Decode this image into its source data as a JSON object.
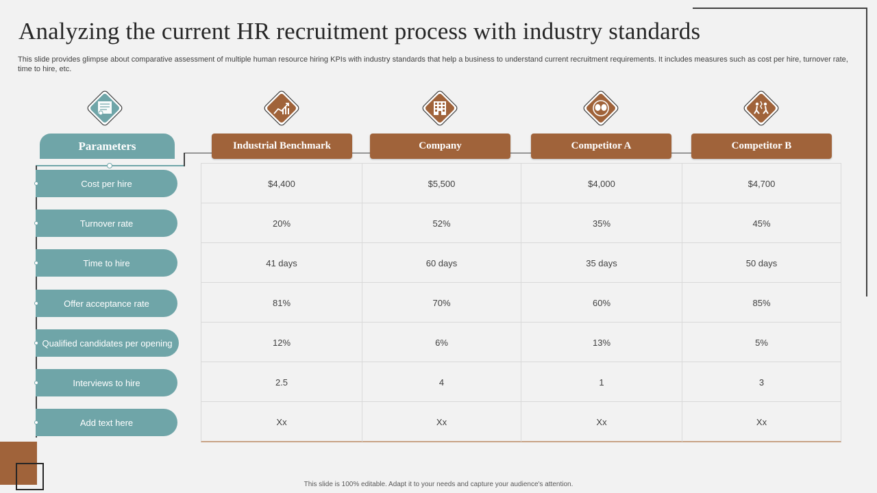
{
  "title": "Analyzing the current HR recruitment process with industry standards",
  "subtitle": "This slide provides glimpse about comparative assessment of multiple human resource hiring KPIs with industry standards that help a business to understand current recruitment requirements. It includes measures such as cost per hire, turnover rate, time to hire, etc.",
  "params_header": "Parameters",
  "columns": [
    {
      "label": "Industrial  Benchmark",
      "icon": "chart-trend-icon"
    },
    {
      "label": "Company",
      "icon": "building-icon"
    },
    {
      "label": "Competitor  A",
      "icon": "boxing-gloves-icon"
    },
    {
      "label": "Competitor  B",
      "icon": "competition-figures-icon"
    }
  ],
  "params_icon": "document-gear-icon",
  "rows": [
    {
      "param": "Cost per hire",
      "values": [
        "$4,400",
        "$5,500",
        "$4,000",
        "$4,700"
      ]
    },
    {
      "param": "Turnover  rate",
      "values": [
        "20%",
        "52%",
        "35%",
        "45%"
      ]
    },
    {
      "param": "Time to hire",
      "values": [
        "41 days",
        "60 days",
        "35 days",
        "50 days"
      ]
    },
    {
      "param": "Offer  acceptance rate",
      "values": [
        "81%",
        "70%",
        "60%",
        "85%"
      ]
    },
    {
      "param": "Qualified  candidates  per opening",
      "values": [
        "12%",
        "6%",
        "13%",
        "5%"
      ]
    },
    {
      "param": "Interviews  to hire",
      "values": [
        "2.5",
        "4",
        "1",
        "3"
      ]
    },
    {
      "param": "Add text here",
      "values": [
        "Xx",
        "Xx",
        "Xx",
        "Xx"
      ]
    }
  ],
  "footer": "This slide is 100% editable.  Adapt it to your needs and capture your audience's attention.",
  "colors": {
    "teal": "#6fa5a8",
    "brown": "#a0633a",
    "background": "#f2f2f2"
  }
}
